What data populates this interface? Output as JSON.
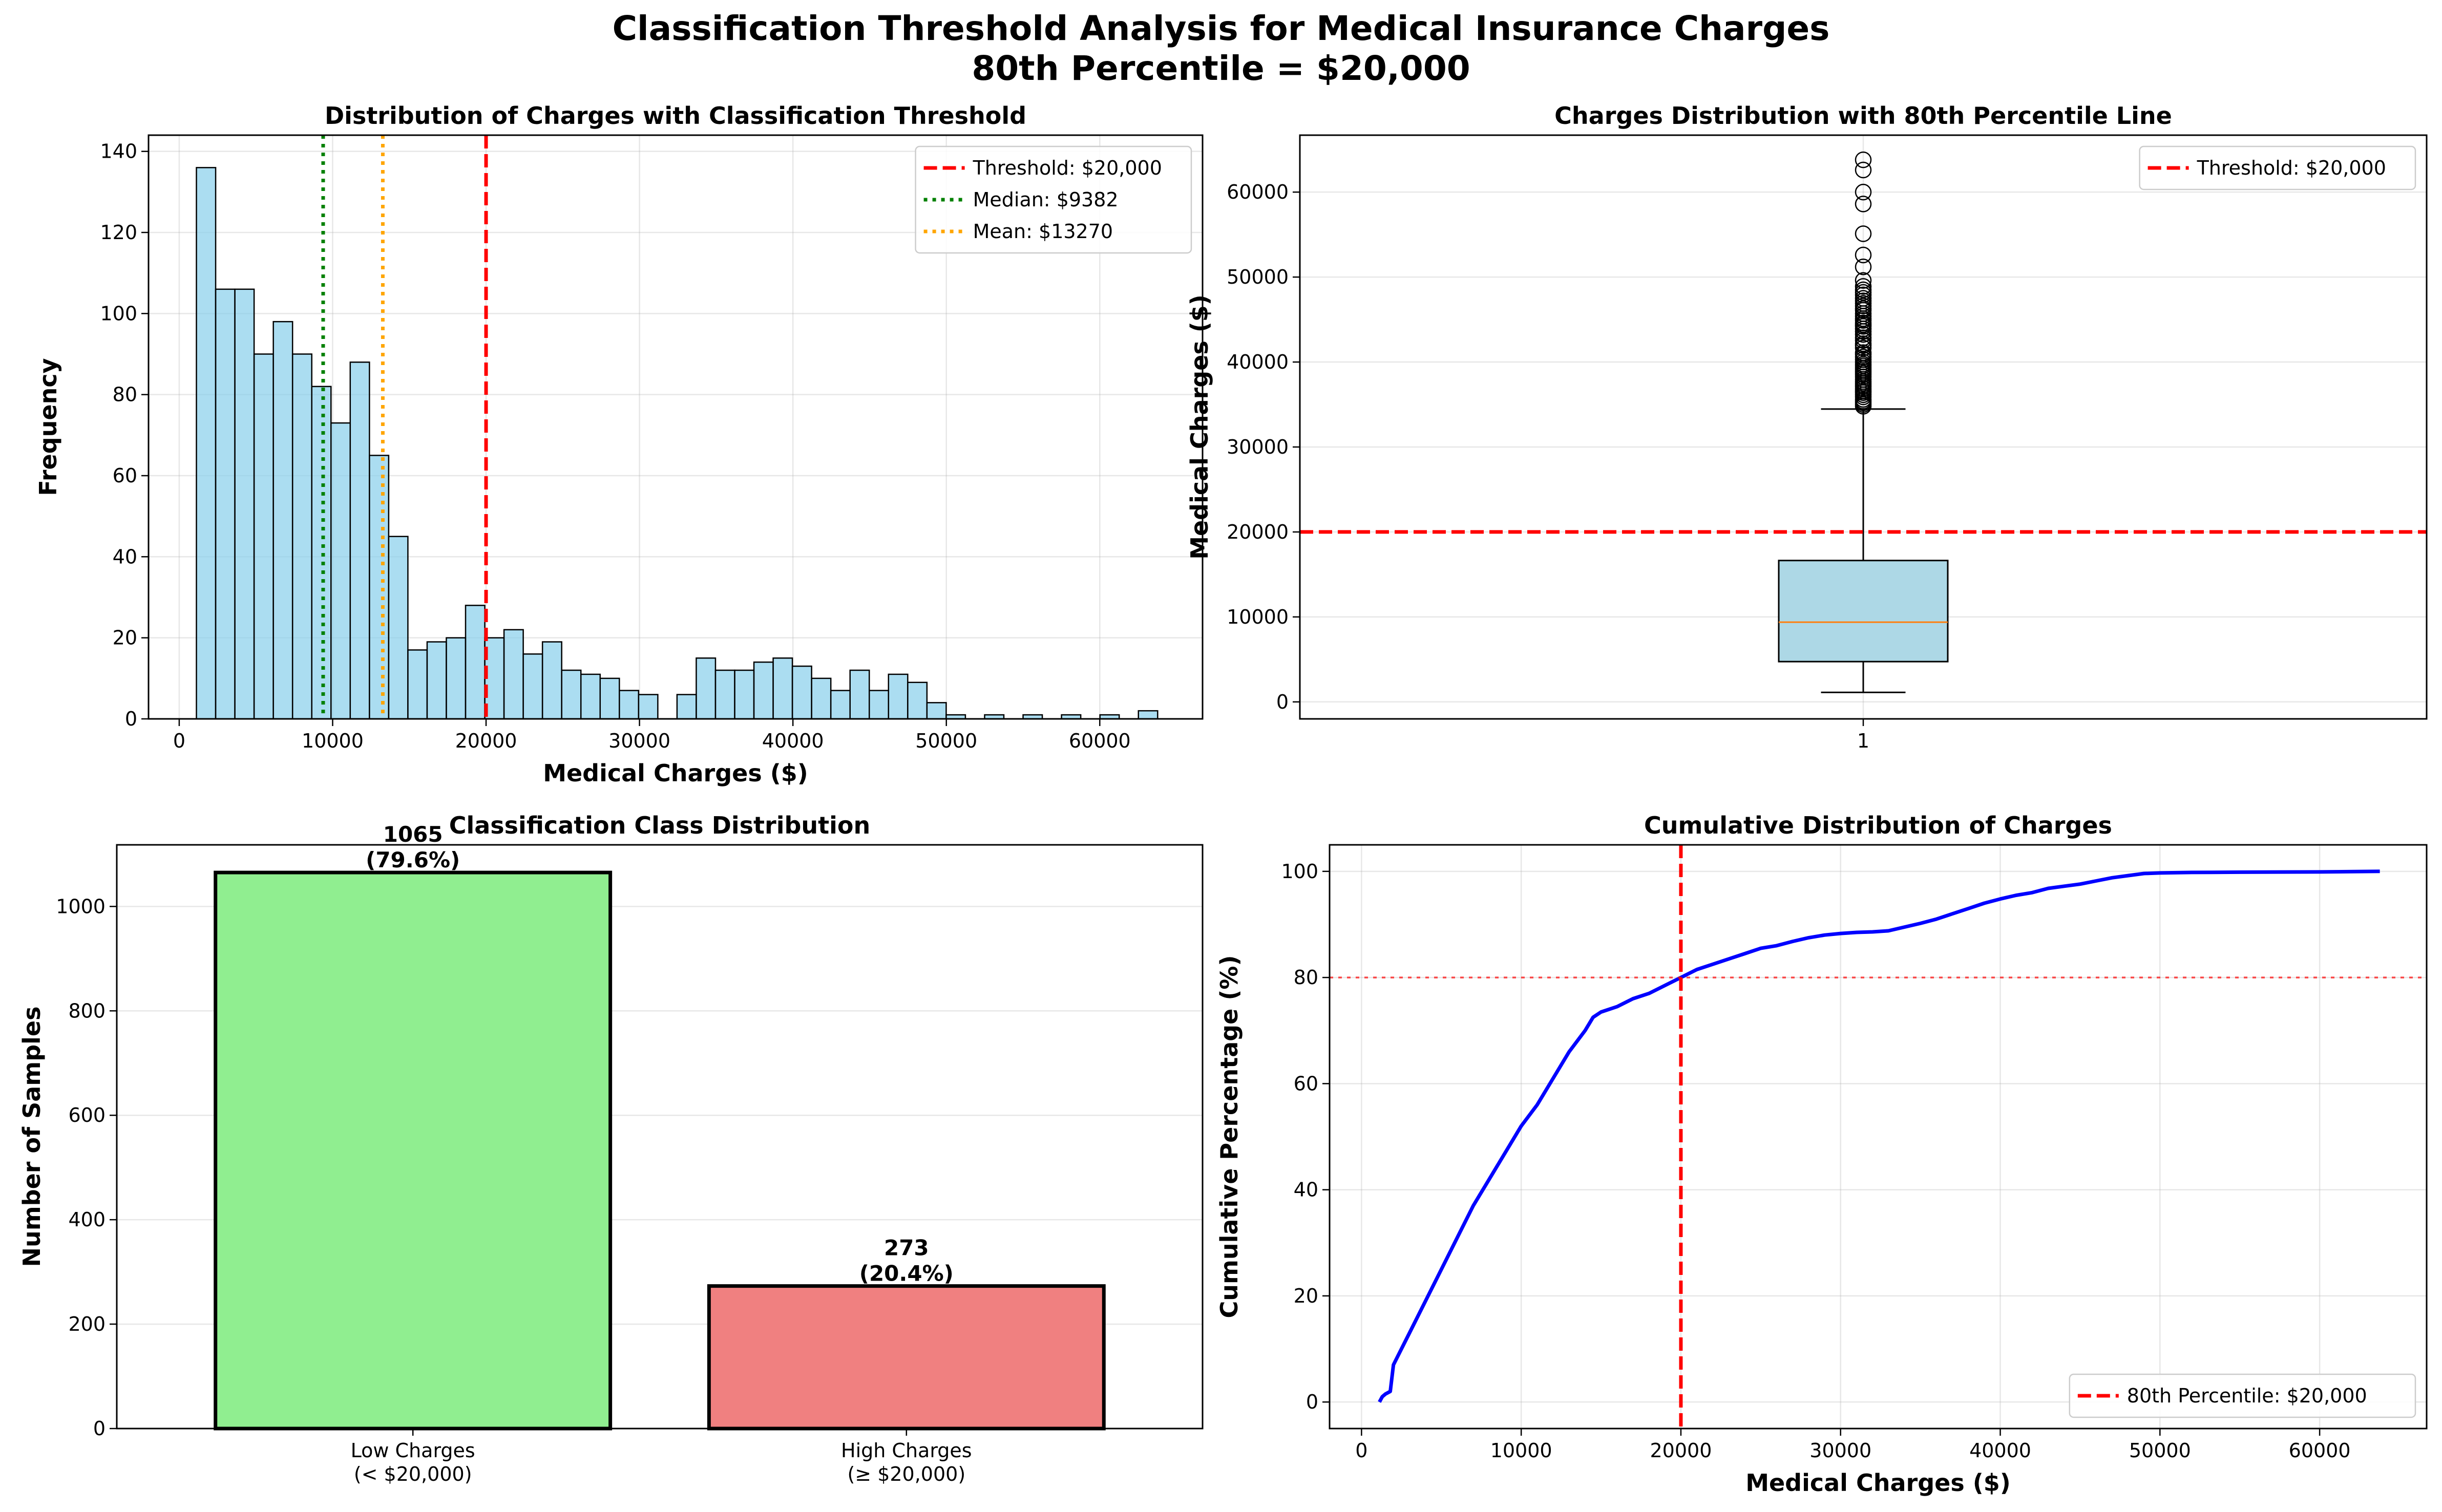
{
  "figure": {
    "title_line1": "Classification Threshold Analysis for Medical Insurance Charges",
    "title_line2": "80th Percentile = $20,000"
  },
  "chart_data": [
    {
      "id": "hist",
      "type": "bar",
      "title": "Distribution of Charges with Classification Threshold",
      "xlabel": "Medical Charges ($)",
      "ylabel": "Frequency",
      "xlim": [
        -2000,
        66700
      ],
      "ylim": [
        0,
        144
      ],
      "xticks": [
        0,
        10000,
        20000,
        30000,
        40000,
        50000,
        60000
      ],
      "yticks": [
        0,
        20,
        40,
        60,
        80,
        100,
        120,
        140
      ],
      "bin_start": 1122,
      "bin_width": 1253,
      "values": [
        136,
        106,
        106,
        90,
        98,
        90,
        82,
        73,
        88,
        65,
        45,
        17,
        19,
        20,
        28,
        20,
        22,
        16,
        19,
        12,
        11,
        10,
        7,
        6,
        0,
        6,
        15,
        12,
        12,
        14,
        15,
        13,
        10,
        7,
        12,
        7,
        11,
        9,
        4,
        1,
        0,
        1,
        0,
        1,
        0,
        1,
        0,
        1,
        0,
        2
      ],
      "color": "#87ceeb",
      "vlines": [
        {
          "label": "Threshold: $20,000",
          "x": 20000,
          "color": "#ff0000",
          "style": "dashed"
        },
        {
          "label": "Median: $9382",
          "x": 9382,
          "color": "#008000",
          "style": "dotted"
        },
        {
          "label": "Mean: $13270",
          "x": 13270,
          "color": "#ffa500",
          "style": "dotted"
        }
      ],
      "legend": "top-right",
      "grid": true
    },
    {
      "id": "box",
      "type": "box",
      "title": "Charges Distribution with 80th Percentile Line",
      "ylabel": "Medical Charges ($)",
      "xlim": [
        0.5,
        1.5
      ],
      "ylim": [
        -2000,
        66700
      ],
      "xticks": [
        1
      ],
      "xticklabels": [
        "1"
      ],
      "yticks": [
        0,
        10000,
        20000,
        30000,
        40000,
        50000,
        60000
      ],
      "box": {
        "whisker_low": 1122,
        "q1": 4740,
        "median": 9382,
        "q3": 16640,
        "whisker_high": 34470
      },
      "outliers": [
        34800,
        35000,
        35200,
        35400,
        35600,
        35900,
        36150,
        36400,
        36600,
        36850,
        37100,
        37300,
        37500,
        37700,
        37950,
        38250,
        38500,
        38700,
        38900,
        39100,
        39300,
        39550,
        39750,
        40000,
        40300,
        40600,
        40900,
        41100,
        41650,
        41950,
        42150,
        42550,
        42850,
        43250,
        43600,
        43900,
        44200,
        44400,
        44600,
        44900,
        45100,
        45400,
        45700,
        46100,
        46300,
        46600,
        46900,
        47200,
        47500,
        47900,
        48200,
        48500,
        48900,
        49600,
        51200,
        52600,
        55100,
        58600,
        60000,
        62600,
        63800
      ],
      "box_color": "#add8e6",
      "hline": {
        "label": "Threshold: $20,000",
        "y": 20000,
        "color": "#ff0000",
        "style": "dashed"
      },
      "legend": "top-right",
      "grid": true
    },
    {
      "id": "classes",
      "type": "bar",
      "title": "Classification Class Distribution",
      "ylabel": "Number of Samples",
      "ylim": [
        0,
        1118
      ],
      "yticks": [
        0,
        200,
        400,
        600,
        800,
        1000
      ],
      "categories": [
        {
          "line1": "Low Charges",
          "line2": "(< $20,000)"
        },
        {
          "line1": "High Charges",
          "line2": "(≥ $20,000)"
        }
      ],
      "values": [
        1065,
        273
      ],
      "labels": [
        {
          "count": "1065",
          "pct": "(79.6%)"
        },
        {
          "count": "273",
          "pct": "(20.4%)"
        }
      ],
      "colors": [
        "#90ee90",
        "#f08080"
      ],
      "grid": true
    },
    {
      "id": "cdf",
      "type": "line",
      "title": "Cumulative Distribution of Charges",
      "xlabel": "Medical Charges ($)",
      "ylabel": "Cumulative Percentage (%)",
      "xlim": [
        -2000,
        66700
      ],
      "ylim": [
        -5,
        105
      ],
      "xticks": [
        0,
        10000,
        20000,
        30000,
        40000,
        50000,
        60000
      ],
      "yticks": [
        0,
        20,
        40,
        60,
        80,
        100
      ],
      "x": [
        1122,
        1300,
        1500,
        1800,
        2000,
        3000,
        4000,
        5000,
        6000,
        7000,
        8000,
        9000,
        10000,
        11000,
        12000,
        13000,
        14000,
        14500,
        15000,
        16000,
        17000,
        18000,
        19000,
        20000,
        21000,
        22000,
        23000,
        24000,
        25000,
        26000,
        27000,
        28000,
        29000,
        30000,
        31000,
        32000,
        33000,
        34000,
        35000,
        36000,
        37000,
        38000,
        39000,
        40000,
        41000,
        42000,
        43000,
        44000,
        45000,
        46000,
        47000,
        48000,
        49000,
        50000,
        52000,
        55000,
        60000,
        63770
      ],
      "y": [
        0,
        1,
        1.5,
        2,
        7,
        13,
        19,
        25,
        31,
        37,
        42,
        47,
        52,
        56,
        61,
        66,
        70,
        72.5,
        73.5,
        74.5,
        76,
        77,
        78.5,
        80,
        81.5,
        82.5,
        83.5,
        84.5,
        85.5,
        86,
        86.8,
        87.5,
        88,
        88.3,
        88.5,
        88.6,
        88.8,
        89.5,
        90.2,
        91,
        92,
        93,
        94,
        94.8,
        95.5,
        96,
        96.8,
        97.2,
        97.6,
        98.2,
        98.8,
        99.2,
        99.6,
        99.7,
        99.8,
        99.85,
        99.9,
        100
      ],
      "line_color": "#0000ff",
      "vline": {
        "label": "80th Percentile: $20,000",
        "x": 20000,
        "color": "#ff0000",
        "style": "dashed"
      },
      "hline": {
        "y": 80,
        "color": "#ff0000",
        "style": "dotted"
      },
      "legend": "bottom-right",
      "grid": true
    }
  ]
}
